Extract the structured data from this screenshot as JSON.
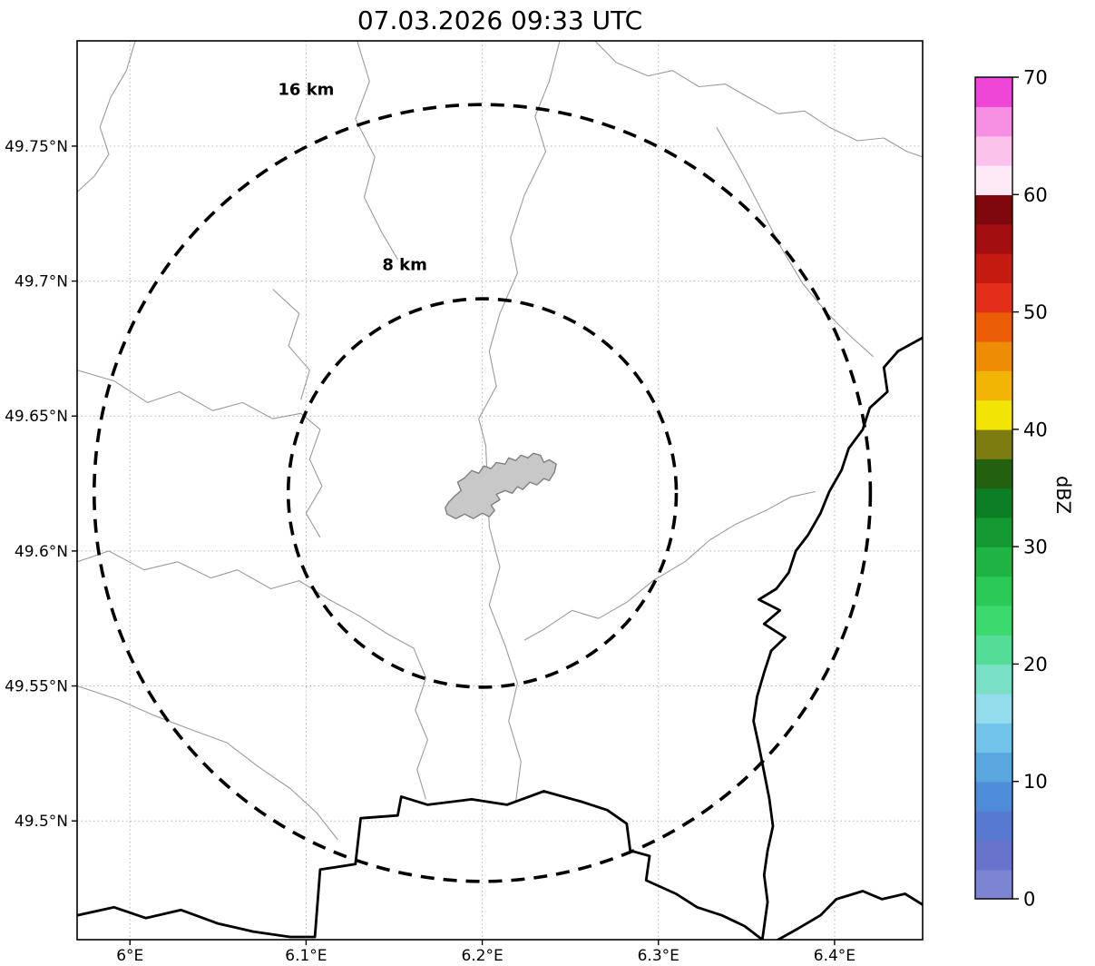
{
  "chart_data": {
    "type": "map",
    "title": "07.03.2026 09:33 UTC",
    "projection": "PlateCarree",
    "x_axis": {
      "range": [
        5.97,
        6.45
      ],
      "tick_values": [
        6.0,
        6.1,
        6.2,
        6.3,
        6.4
      ],
      "tick_labels": [
        "6°E",
        "6.1°E",
        "6.2°E",
        "6.3°E",
        "6.4°E"
      ]
    },
    "y_axis": {
      "range": [
        49.456,
        49.789
      ],
      "tick_values": [
        49.5,
        49.55,
        49.6,
        49.65,
        49.7,
        49.75
      ],
      "tick_labels": [
        "49.5°N",
        "49.55°N",
        "49.6°N",
        "49.65°N",
        "49.7°N",
        "49.75°N"
      ]
    },
    "radar": {
      "lon": 6.2,
      "lat": 49.6215
    },
    "range_rings": [
      {
        "radius_km": 8,
        "label": "8 km",
        "label_lon": 6.156,
        "label_lat": 49.704
      },
      {
        "radius_km": 16,
        "label": "16 km",
        "label_lon": 6.1,
        "label_lat": 49.769
      }
    ],
    "colorbar": {
      "label": "dBZ",
      "min": 0,
      "max": 70,
      "step": 2.5,
      "tick_values": [
        0,
        10,
        20,
        30,
        40,
        50,
        60,
        70
      ],
      "colors": [
        "#7d85d2",
        "#6874cc",
        "#5779d0",
        "#4f8cd8",
        "#5aa7e0",
        "#72c3ea",
        "#92dcec",
        "#79e0c6",
        "#54dd96",
        "#3bd96e",
        "#2ac957",
        "#1fb244",
        "#149a33",
        "#0c7f26",
        "#23600f",
        "#7c7c10",
        "#f2e405",
        "#f2b405",
        "#ef8c05",
        "#ea5c05",
        "#e32f1a",
        "#c51a12",
        "#a30f10",
        "#7e080c",
        "#fdeaf6",
        "#fbc3ec",
        "#f78fe2",
        "#ee46d6"
      ]
    },
    "style": {
      "grid": "#b5b5b5",
      "admin_boundary": "#9b9b9b",
      "country_border": "#000000",
      "city_fill": "#c8c8c8",
      "city_outline": "#808080"
    },
    "city_polygon": [
      [
        6.18,
        49.6137
      ],
      [
        6.185,
        49.612
      ],
      [
        6.19,
        49.6137
      ],
      [
        6.195,
        49.612
      ],
      [
        6.2,
        49.614
      ],
      [
        6.204,
        49.6127
      ],
      [
        6.207,
        49.615
      ],
      [
        6.205,
        49.617
      ],
      [
        6.21,
        49.619
      ],
      [
        6.208,
        49.621
      ],
      [
        6.213,
        49.6224
      ],
      [
        6.217,
        49.6214
      ],
      [
        6.22,
        49.6238
      ],
      [
        6.223,
        49.6228
      ],
      [
        6.227,
        49.6255
      ],
      [
        6.231,
        49.6245
      ],
      [
        6.235,
        49.6268
      ],
      [
        6.238,
        49.6261
      ],
      [
        6.241,
        49.6292
      ],
      [
        6.242,
        49.6322
      ],
      [
        6.238,
        49.6338
      ],
      [
        6.235,
        49.6328
      ],
      [
        6.233,
        49.6355
      ],
      [
        6.229,
        49.6362
      ],
      [
        6.226,
        49.6345
      ],
      [
        6.222,
        49.6355
      ],
      [
        6.219,
        49.6335
      ],
      [
        6.215,
        49.6345
      ],
      [
        6.213,
        49.6322
      ],
      [
        6.208,
        49.6328
      ],
      [
        6.205,
        49.6305
      ],
      [
        6.201,
        49.6315
      ],
      [
        6.198,
        49.6288
      ],
      [
        6.194,
        49.6298
      ],
      [
        6.19,
        49.6271
      ],
      [
        6.186,
        49.6255
      ],
      [
        6.188,
        49.6224
      ],
      [
        6.184,
        49.6201
      ],
      [
        6.181,
        49.6181
      ],
      [
        6.179,
        49.616
      ]
    ],
    "borders_thick": [
      [
        [
          6.45,
          49.679
        ],
        [
          6.436,
          49.674
        ],
        [
          6.428,
          49.668
        ],
        [
          6.43,
          49.659
        ],
        [
          6.42,
          49.653
        ],
        [
          6.416,
          49.645
        ],
        [
          6.408,
          49.638
        ],
        [
          6.404,
          49.63
        ],
        [
          6.397,
          49.622
        ],
        [
          6.392,
          49.614
        ],
        [
          6.385,
          49.606
        ],
        [
          6.378,
          49.6
        ],
        [
          6.374,
          49.592
        ],
        [
          6.367,
          49.586
        ],
        [
          6.357,
          49.582
        ],
        [
          6.369,
          49.578
        ],
        [
          6.36,
          49.573
        ],
        [
          6.372,
          49.568
        ],
        [
          6.364,
          49.563
        ],
        [
          6.36,
          49.555
        ],
        [
          6.356,
          49.546
        ],
        [
          6.354,
          49.537
        ],
        [
          6.357,
          49.528
        ],
        [
          6.36,
          49.518
        ],
        [
          6.363,
          49.508
        ],
        [
          6.365,
          49.498
        ],
        [
          6.362,
          49.489
        ],
        [
          6.36,
          49.48
        ],
        [
          6.362,
          49.47
        ],
        [
          6.359,
          49.456
        ]
      ],
      [
        [
          5.97,
          49.465
        ],
        [
          5.991,
          49.468
        ],
        [
          6.009,
          49.464
        ],
        [
          6.029,
          49.467
        ],
        [
          6.05,
          49.462
        ],
        [
          6.07,
          49.459
        ],
        [
          6.091,
          49.457
        ],
        [
          6.105,
          49.457
        ],
        [
          6.108,
          49.482
        ],
        [
          6.128,
          49.484
        ],
        [
          6.131,
          49.501
        ],
        [
          6.152,
          49.502
        ],
        [
          6.154,
          49.509
        ],
        [
          6.169,
          49.506
        ],
        [
          6.194,
          49.508
        ],
        [
          6.214,
          49.506
        ],
        [
          6.235,
          49.511
        ],
        [
          6.257,
          49.507
        ],
        [
          6.271,
          49.504
        ],
        [
          6.282,
          49.499
        ],
        [
          6.284,
          49.489
        ],
        [
          6.295,
          49.487
        ],
        [
          6.293,
          49.478
        ],
        [
          6.31,
          49.473
        ],
        [
          6.322,
          49.468
        ],
        [
          6.336,
          49.465
        ],
        [
          6.349,
          49.461
        ],
        [
          6.359,
          49.456
        ]
      ],
      [
        [
          6.368,
          49.456
        ],
        [
          6.379,
          49.46
        ],
        [
          6.392,
          49.465
        ],
        [
          6.401,
          49.471
        ],
        [
          6.416,
          49.474
        ],
        [
          6.427,
          49.471
        ],
        [
          6.44,
          49.473
        ],
        [
          6.45,
          49.469
        ]
      ]
    ],
    "boundaries_thin": [
      [
        [
          6.003,
          49.789
        ],
        [
          5.998,
          49.778
        ],
        [
          5.989,
          49.768
        ],
        [
          5.983,
          49.757
        ],
        [
          5.988,
          49.747
        ],
        [
          5.98,
          49.739
        ],
        [
          5.97,
          49.733
        ]
      ],
      [
        [
          6.244,
          49.789
        ],
        [
          6.238,
          49.774
        ],
        [
          6.23,
          49.761
        ],
        [
          6.236,
          49.748
        ],
        [
          6.224,
          49.732
        ],
        [
          6.216,
          49.716
        ],
        [
          6.22,
          49.703
        ],
        [
          6.21,
          49.688
        ],
        [
          6.204,
          49.674
        ],
        [
          6.208,
          49.661
        ],
        [
          6.198,
          49.649
        ],
        [
          6.202,
          49.639
        ],
        [
          6.204,
          49.609
        ],
        [
          6.21,
          49.594
        ],
        [
          6.204,
          49.58
        ],
        [
          6.213,
          49.565
        ],
        [
          6.22,
          49.551
        ],
        [
          6.215,
          49.537
        ],
        [
          6.222,
          49.522
        ],
        [
          6.219,
          49.507
        ]
      ],
      [
        [
          6.264,
          49.789
        ],
        [
          6.276,
          49.781
        ],
        [
          6.294,
          49.776
        ],
        [
          6.308,
          49.778
        ],
        [
          6.323,
          49.772
        ],
        [
          6.338,
          49.773
        ],
        [
          6.354,
          49.767
        ],
        [
          6.368,
          49.762
        ],
        [
          6.383,
          49.763
        ],
        [
          6.397,
          49.757
        ],
        [
          6.413,
          49.752
        ],
        [
          6.428,
          49.753
        ],
        [
          6.441,
          49.748
        ],
        [
          6.45,
          49.746
        ]
      ],
      [
        [
          6.333,
          49.757
        ],
        [
          6.346,
          49.742
        ],
        [
          6.358,
          49.727
        ],
        [
          6.37,
          49.712
        ],
        [
          6.382,
          49.699
        ],
        [
          6.396,
          49.688
        ],
        [
          6.41,
          49.679
        ],
        [
          6.422,
          49.672
        ]
      ],
      [
        [
          5.97,
          49.667
        ],
        [
          5.991,
          49.663
        ],
        [
          6.01,
          49.655
        ],
        [
          6.028,
          49.659
        ],
        [
          6.047,
          49.652
        ],
        [
          6.064,
          49.655
        ],
        [
          6.081,
          49.649
        ],
        [
          6.097,
          49.651
        ],
        [
          6.108,
          49.645
        ],
        [
          6.102,
          49.634
        ],
        [
          6.109,
          49.624
        ],
        [
          6.1,
          49.614
        ],
        [
          6.108,
          49.605
        ]
      ],
      [
        [
          5.97,
          49.596
        ],
        [
          5.988,
          49.6
        ],
        [
          6.008,
          49.593
        ],
        [
          6.027,
          49.596
        ],
        [
          6.046,
          49.59
        ],
        [
          6.061,
          49.593
        ],
        [
          6.08,
          49.586
        ],
        [
          6.096,
          49.589
        ],
        [
          6.113,
          49.582
        ],
        [
          6.13,
          49.576
        ],
        [
          6.147,
          49.569
        ],
        [
          6.161,
          49.564
        ],
        [
          6.168,
          49.553
        ],
        [
          6.162,
          49.541
        ],
        [
          6.169,
          49.53
        ],
        [
          6.163,
          49.519
        ],
        [
          6.168,
          49.508
        ]
      ],
      [
        [
          6.315,
          49.596
        ],
        [
          6.297,
          49.589
        ],
        [
          6.282,
          49.581
        ],
        [
          6.266,
          49.575
        ],
        [
          6.251,
          49.578
        ],
        [
          6.235,
          49.571
        ],
        [
          6.224,
          49.567
        ]
      ],
      [
        [
          6.315,
          49.596
        ],
        [
          6.329,
          49.604
        ],
        [
          6.344,
          49.61
        ],
        [
          6.361,
          49.615
        ],
        [
          6.375,
          49.62
        ],
        [
          6.389,
          49.622
        ]
      ],
      [
        [
          6.081,
          49.697
        ],
        [
          6.096,
          49.688
        ],
        [
          6.09,
          49.676
        ],
        [
          6.102,
          49.667
        ],
        [
          6.097,
          49.656
        ]
      ],
      [
        [
          5.97,
          49.55
        ],
        [
          5.993,
          49.545
        ],
        [
          6.014,
          49.539
        ],
        [
          6.034,
          49.534
        ],
        [
          6.055,
          49.529
        ],
        [
          6.073,
          49.52
        ],
        [
          6.091,
          49.512
        ],
        [
          6.106,
          49.503
        ],
        [
          6.118,
          49.493
        ]
      ],
      [
        [
          6.129,
          49.789
        ],
        [
          6.136,
          49.774
        ],
        [
          6.128,
          49.76
        ],
        [
          6.139,
          49.746
        ],
        [
          6.133,
          49.731
        ],
        [
          6.143,
          49.718
        ],
        [
          6.152,
          49.708
        ]
      ]
    ]
  }
}
